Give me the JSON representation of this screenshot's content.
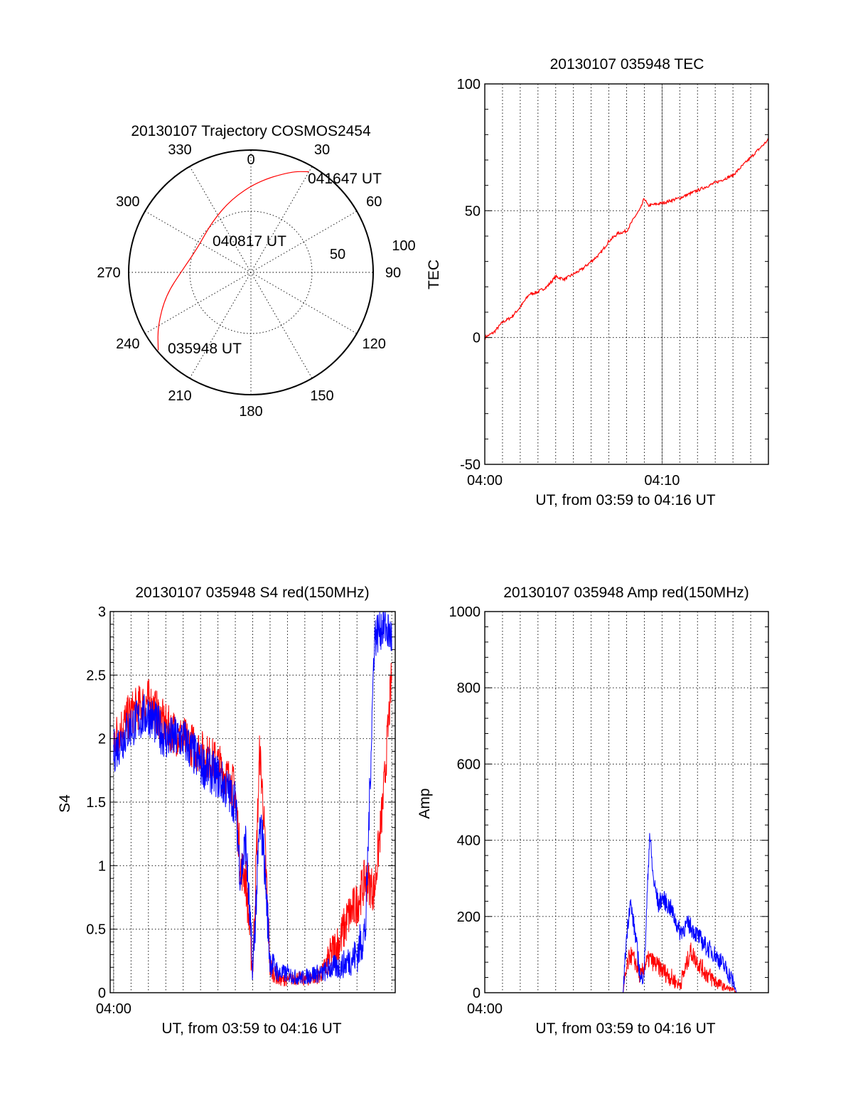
{
  "colors": {
    "red": "#ff0000",
    "blue": "#0000ff",
    "axis": "#000000"
  },
  "chart_data": [
    {
      "type": "polar",
      "title": "20130107 Trajectory COSMOS2454",
      "azimuth_labels": [
        "0",
        "30",
        "60",
        "90",
        "120",
        "150",
        "180",
        "210",
        "240",
        "270",
        "300",
        "330"
      ],
      "elevation_labels": [
        "50",
        "100"
      ],
      "radius_range": [
        0,
        100
      ],
      "annotations": {
        "start": "035948 UT",
        "mid": "040817 UT",
        "end": "041647 UT"
      },
      "trajectory": {
        "color": "red",
        "points": [
          {
            "az": 230,
            "r": 99
          },
          {
            "az": 240,
            "r": 88
          },
          {
            "az": 255,
            "r": 72
          },
          {
            "az": 272,
            "r": 56
          },
          {
            "az": 295,
            "r": 48
          },
          {
            "az": 322,
            "r": 52
          },
          {
            "az": 345,
            "r": 62
          },
          {
            "az": 5,
            "r": 75
          },
          {
            "az": 22,
            "r": 89
          },
          {
            "az": 30,
            "r": 95
          }
        ]
      }
    },
    {
      "type": "line",
      "title": "20130107 035948 TEC",
      "xlabel": "UT, from 03:59 to 04:16 UT",
      "ylabel": "TEC",
      "xlim": [
        0,
        16
      ],
      "ylim": [
        -50,
        100
      ],
      "xticks": [
        {
          "v": 0,
          "label": "04:00"
        },
        {
          "v": 10,
          "label": "04:10"
        }
      ],
      "yticks": [
        -50,
        0,
        50,
        100
      ],
      "grid": true,
      "series": [
        {
          "color": "red",
          "x": [
            0,
            0.5,
            1,
            1.5,
            2,
            2.5,
            3,
            3.5,
            4,
            4.5,
            5,
            5.5,
            6,
            6.5,
            7,
            7.5,
            8,
            8.5,
            8.8,
            9,
            9.2,
            10,
            11,
            12,
            13,
            14,
            15,
            16
          ],
          "y": [
            0,
            2,
            6,
            8,
            12,
            17,
            18,
            20,
            24,
            23,
            25,
            27,
            30,
            33,
            38,
            41,
            42,
            48,
            51,
            55,
            52,
            53,
            55,
            58,
            61,
            64,
            71,
            78
          ]
        }
      ]
    },
    {
      "type": "line",
      "title": "20130107 035948 S4 red(150MHz)",
      "xlabel": "UT, from 03:59 to 04:16 UT",
      "ylabel": "S4",
      "xlim": [
        -0.2,
        16.2
      ],
      "ylim": [
        0,
        3
      ],
      "xticks": [
        {
          "v": 0,
          "label": "04:00"
        }
      ],
      "yticks": [
        {
          "v": 0,
          "label": "0"
        },
        {
          "v": 0.5,
          "label": "0.5"
        },
        {
          "v": 1,
          "label": "1"
        },
        {
          "v": 1.5,
          "label": "1.5"
        },
        {
          "v": 2,
          "label": "2"
        },
        {
          "v": 2.5,
          "label": "2.5"
        },
        {
          "v": 3,
          "label": "3"
        }
      ],
      "grid": true,
      "series": [
        {
          "color": "red",
          "x": [
            0,
            1,
            2,
            3,
            4,
            5,
            6,
            7,
            7.3,
            7.6,
            8,
            8.4,
            8.6,
            9,
            9.5,
            10,
            10.5,
            11,
            11.5,
            12,
            12.5,
            13,
            13.5,
            14,
            14.5,
            15,
            15.5,
            16
          ],
          "y": [
            2.0,
            2.2,
            2.3,
            2.1,
            2.0,
            1.9,
            1.8,
            1.6,
            1.0,
            0.9,
            0.15,
            1.9,
            1.5,
            0.2,
            0.1,
            0.1,
            0.12,
            0.1,
            0.12,
            0.15,
            0.3,
            0.4,
            0.6,
            0.7,
            0.9,
            0.8,
            1.5,
            2.5
          ]
        },
        {
          "color": "blue",
          "x": [
            0,
            1,
            2,
            3,
            4,
            5,
            6,
            7,
            7.3,
            7.6,
            8,
            8.4,
            8.6,
            9,
            9.5,
            10,
            10.5,
            11,
            11.5,
            12,
            12.5,
            13,
            13.5,
            14,
            14.5,
            15,
            15.5,
            16
          ],
          "y": [
            1.9,
            2.1,
            2.2,
            2.0,
            2.0,
            1.8,
            1.7,
            1.5,
            0.9,
            1.2,
            0.15,
            1.3,
            1.2,
            0.25,
            0.15,
            0.15,
            0.12,
            0.12,
            0.15,
            0.15,
            0.2,
            0.2,
            0.25,
            0.3,
            0.5,
            2.8,
            2.9,
            2.8
          ]
        }
      ]
    },
    {
      "type": "line",
      "title": "20130107 035948 Amp red(150MHz)",
      "xlabel": "UT, from 03:59 to 04:16 UT",
      "ylabel": "Amp",
      "xlim": [
        0,
        16
      ],
      "ylim": [
        0,
        1000
      ],
      "xticks": [
        {
          "v": 0,
          "label": "04:00"
        }
      ],
      "yticks": [
        0,
        200,
        400,
        600,
        800,
        1000
      ],
      "grid": true,
      "series": [
        {
          "color": "red",
          "x": [
            0,
            7.8,
            8.0,
            8.2,
            8.5,
            8.8,
            9.0,
            9.3,
            9.5,
            10,
            10.5,
            11,
            11.3,
            11.6,
            12,
            12.5,
            13,
            13.5,
            14,
            14.2,
            16
          ],
          "y": [
            0,
            0,
            60,
            100,
            80,
            40,
            70,
            90,
            80,
            60,
            40,
            20,
            60,
            110,
            80,
            50,
            30,
            15,
            8,
            0,
            0
          ]
        },
        {
          "color": "blue",
          "x": [
            0,
            7.8,
            8.0,
            8.2,
            8.5,
            8.8,
            9.0,
            9.3,
            9.5,
            9.8,
            10,
            10.5,
            11,
            11.5,
            12,
            12.5,
            13,
            13.5,
            14,
            14.2,
            16
          ],
          "y": [
            0,
            0,
            150,
            240,
            150,
            30,
            60,
            420,
            300,
            230,
            250,
            220,
            160,
            180,
            150,
            120,
            100,
            70,
            30,
            0,
            0
          ]
        }
      ]
    }
  ]
}
